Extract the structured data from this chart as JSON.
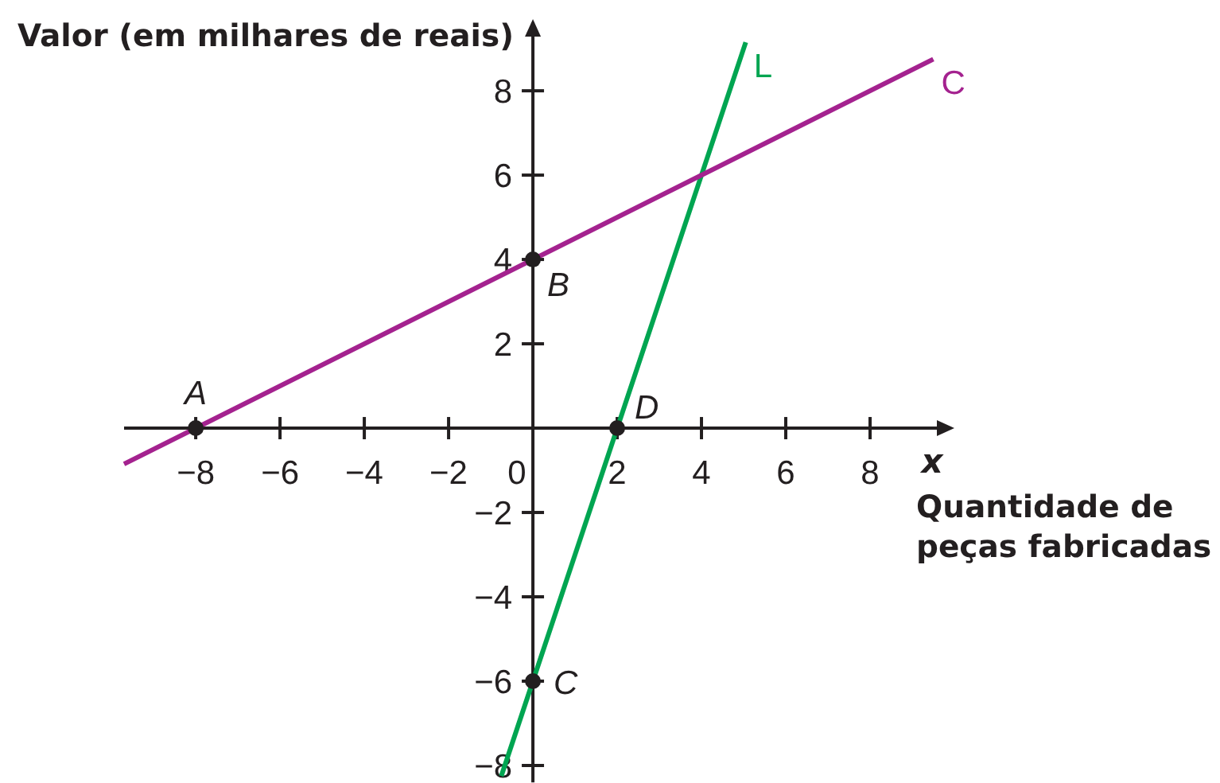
{
  "chart_data": {
    "type": "line",
    "xlabel": "Quantidade de peças fabricadas",
    "ylabel": "Valor (em milhares de reais)",
    "xlim": [
      -9.7,
      10
    ],
    "ylim": [
      -8.4,
      9.7
    ],
    "xticks": [
      -8,
      -6,
      -4,
      -2,
      0,
      2,
      4,
      6,
      8
    ],
    "yticks": [
      -8,
      -6,
      -4,
      -2,
      2,
      4,
      6,
      8
    ],
    "series": [
      {
        "name": "L",
        "color": "#00a551",
        "x": [
          -0.75,
          5.05
        ],
        "values": [
          -8.25,
          9.15
        ]
      },
      {
        "name": "C",
        "color": "#a4228f",
        "x": [
          -9.7,
          9.5
        ],
        "values": [
          -0.85,
          8.75
        ]
      },
      {
        "type": "scatter",
        "color": "#231f20",
        "marker": "circle",
        "x": [
          -8,
          0,
          0,
          2
        ],
        "values": [
          0,
          4,
          -6,
          0
        ]
      }
    ],
    "annotations": [
      {
        "text": "A",
        "x": -8,
        "y": 0
      },
      {
        "text": "B",
        "x": 0,
        "y": 4
      },
      {
        "text": "C",
        "x": 0,
        "y": -6
      },
      {
        "text": "D",
        "x": 2,
        "y": 0
      },
      "x"
    ]
  }
}
